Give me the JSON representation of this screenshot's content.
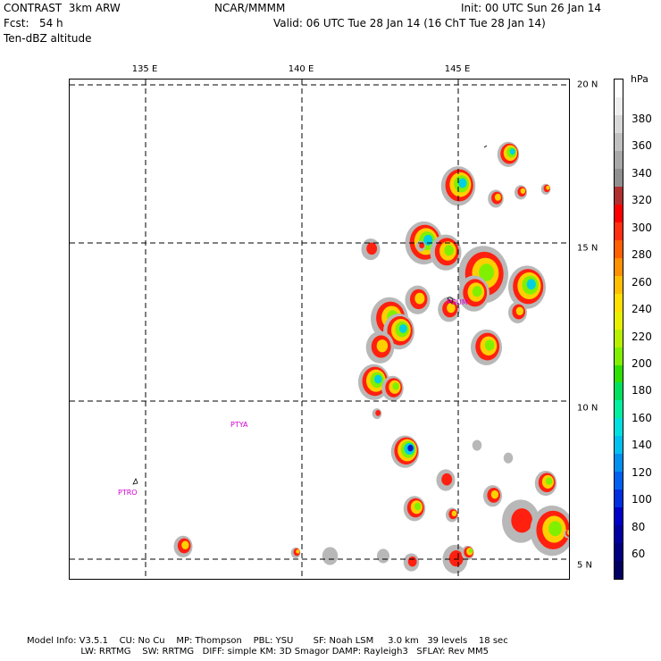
{
  "header": {
    "model": "CONTRAST  3km ARW",
    "org": "NCAR/MMMM",
    "init": "Init: 00 UTC Sun 26 Jan 14",
    "fcst": "Fcst:   54 h",
    "valid": "Valid: 06 UTC Tue 28 Jan 14 (16 ChT Tue 28 Jan 14)",
    "field": "Ten-dBZ altitude"
  },
  "map": {
    "lon_labels": [
      "135 E",
      "140 E",
      "145 E"
    ],
    "lat_labels": [
      "20 N",
      "15 N",
      "10 N",
      "5 N"
    ],
    "cities": [
      {
        "name": "PTYA"
      },
      {
        "name": "PTRO"
      },
      {
        "name": "PGUM"
      }
    ],
    "grid": "dashed",
    "echoes": [
      {
        "lon": 146.6,
        "lat": 17.8,
        "r": 0.35,
        "lvl": 4
      },
      {
        "lon": 145.0,
        "lat": 16.8,
        "r": 0.55,
        "lvl": 4
      },
      {
        "lon": 146.2,
        "lat": 16.4,
        "r": 0.25,
        "lvl": 2
      },
      {
        "lon": 147.0,
        "lat": 16.6,
        "r": 0.2,
        "lvl": 2
      },
      {
        "lon": 143.9,
        "lat": 15.0,
        "r": 0.6,
        "lvl": 4
      },
      {
        "lon": 144.6,
        "lat": 14.7,
        "r": 0.5,
        "lvl": 3
      },
      {
        "lon": 142.2,
        "lat": 14.8,
        "r": 0.3,
        "lvl": 1
      },
      {
        "lon": 145.8,
        "lat": 14.0,
        "r": 0.8,
        "lvl": 3
      },
      {
        "lon": 147.2,
        "lat": 13.6,
        "r": 0.6,
        "lvl": 4
      },
      {
        "lon": 145.5,
        "lat": 13.4,
        "r": 0.5,
        "lvl": 3
      },
      {
        "lon": 143.7,
        "lat": 13.2,
        "r": 0.4,
        "lvl": 2
      },
      {
        "lon": 144.7,
        "lat": 12.9,
        "r": 0.35,
        "lvl": 2
      },
      {
        "lon": 142.8,
        "lat": 12.6,
        "r": 0.6,
        "lvl": 3
      },
      {
        "lon": 143.1,
        "lat": 12.2,
        "r": 0.5,
        "lvl": 4
      },
      {
        "lon": 146.9,
        "lat": 12.8,
        "r": 0.3,
        "lvl": 2
      },
      {
        "lon": 145.9,
        "lat": 11.7,
        "r": 0.5,
        "lvl": 3
      },
      {
        "lon": 142.5,
        "lat": 11.7,
        "r": 0.45,
        "lvl": 2
      },
      {
        "lon": 142.3,
        "lat": 10.6,
        "r": 0.5,
        "lvl": 4
      },
      {
        "lon": 142.9,
        "lat": 10.4,
        "r": 0.35,
        "lvl": 3
      },
      {
        "lon": 142.4,
        "lat": 9.6,
        "r": 0.15,
        "lvl": 1
      },
      {
        "lon": 143.3,
        "lat": 8.4,
        "r": 0.45,
        "lvl": 5
      },
      {
        "lon": 145.6,
        "lat": 8.6,
        "r": 0.15,
        "lvl": 0
      },
      {
        "lon": 146.6,
        "lat": 8.2,
        "r": 0.15,
        "lvl": 0
      },
      {
        "lon": 144.6,
        "lat": 7.5,
        "r": 0.3,
        "lvl": 1
      },
      {
        "lon": 146.1,
        "lat": 7.0,
        "r": 0.3,
        "lvl": 2
      },
      {
        "lon": 147.8,
        "lat": 7.4,
        "r": 0.35,
        "lvl": 3
      },
      {
        "lon": 149.0,
        "lat": 7.6,
        "r": 0.15,
        "lvl": 3
      },
      {
        "lon": 143.6,
        "lat": 6.6,
        "r": 0.35,
        "lvl": 3
      },
      {
        "lon": 144.8,
        "lat": 6.4,
        "r": 0.2,
        "lvl": 2
      },
      {
        "lon": 147.0,
        "lat": 6.2,
        "r": 0.6,
        "lvl": 1
      },
      {
        "lon": 148.0,
        "lat": 5.9,
        "r": 0.7,
        "lvl": 3
      },
      {
        "lon": 149.1,
        "lat": 5.9,
        "r": 0.2,
        "lvl": 3
      },
      {
        "lon": 148.5,
        "lat": 5.8,
        "r": 0.12,
        "lvl": 5
      },
      {
        "lon": 136.2,
        "lat": 5.4,
        "r": 0.3,
        "lvl": 2
      },
      {
        "lon": 139.8,
        "lat": 5.2,
        "r": 0.15,
        "lvl": 2
      },
      {
        "lon": 140.9,
        "lat": 5.1,
        "r": 0.25,
        "lvl": 0
      },
      {
        "lon": 142.6,
        "lat": 5.1,
        "r": 0.2,
        "lvl": 0
      },
      {
        "lon": 143.5,
        "lat": 4.9,
        "r": 0.25,
        "lvl": 1
      },
      {
        "lon": 144.9,
        "lat": 5.0,
        "r": 0.4,
        "lvl": 1
      },
      {
        "lon": 145.3,
        "lat": 5.2,
        "r": 0.2,
        "lvl": 3
      },
      {
        "lon": 143.8,
        "lat": 14.9,
        "r": 0.15,
        "lvl": 1
      },
      {
        "lon": 147.8,
        "lat": 16.7,
        "r": 0.15,
        "lvl": 2
      }
    ]
  },
  "colorbar": {
    "unit": "hPa",
    "ticks": [
      "380",
      "360",
      "340",
      "320",
      "300",
      "280",
      "260",
      "240",
      "220",
      "200",
      "180",
      "160",
      "140",
      "120",
      "100",
      "80",
      "60"
    ],
    "colors": [
      "#ffffff",
      "#eeeeee",
      "#d8d8d8",
      "#c0c0c0",
      "#a8a8a8",
      "#909090",
      "#b03030",
      "#ff0000",
      "#ff3010",
      "#ff6000",
      "#ff9000",
      "#ffbf00",
      "#ffe000",
      "#e8f000",
      "#b8f000",
      "#80f000",
      "#30e000",
      "#00e060",
      "#00f0a0",
      "#00e0e0",
      "#00c0f0",
      "#0090f0",
      "#0060f0",
      "#0030e0",
      "#0000c8",
      "#0000a0",
      "#000080",
      "#000060"
    ],
    "echo_palette": [
      "#b8b8b8",
      "#ff2010",
      "#ffd000",
      "#80f000",
      "#00d0e0",
      "#0020c0"
    ]
  },
  "footer": {
    "line1": "Model Info: V3.5.1    CU: No Cu    MP: Thompson    PBL: YSU       SF: Noah LSM     3.0 km   39 levels    18 sec",
    "line2": "                   LW: RRTMG    SW: RRTMG   DIFF: simple KM: 3D Smagor DAMP: Rayleigh3   SFLAY: Rev MM5"
  }
}
